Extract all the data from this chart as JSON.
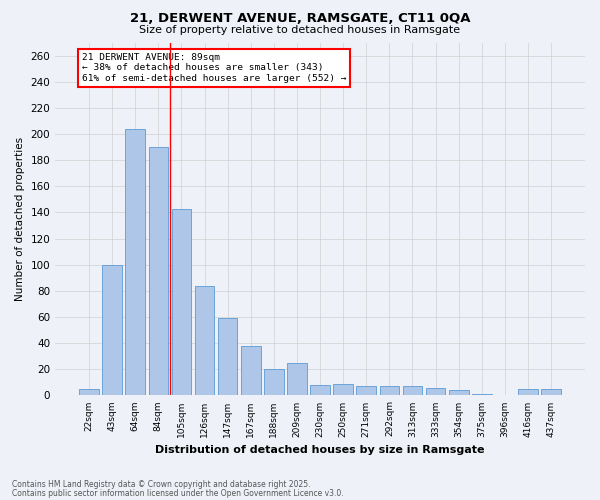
{
  "title1": "21, DERWENT AVENUE, RAMSGATE, CT11 0QA",
  "title2": "Size of property relative to detached houses in Ramsgate",
  "xlabel": "Distribution of detached houses by size in Ramsgate",
  "ylabel": "Number of detached properties",
  "categories": [
    "22sqm",
    "43sqm",
    "64sqm",
    "84sqm",
    "105sqm",
    "126sqm",
    "147sqm",
    "167sqm",
    "188sqm",
    "209sqm",
    "230sqm",
    "250sqm",
    "271sqm",
    "292sqm",
    "313sqm",
    "333sqm",
    "354sqm",
    "375sqm",
    "396sqm",
    "416sqm",
    "437sqm"
  ],
  "values": [
    5,
    100,
    204,
    190,
    143,
    84,
    59,
    38,
    20,
    25,
    8,
    9,
    7,
    7,
    7,
    6,
    4,
    1,
    0,
    5,
    5
  ],
  "bar_color": "#aec6e8",
  "bar_edge_color": "#5b9bd5",
  "grid_color": "#d0d0d0",
  "vline_x": 3.5,
  "vline_color": "red",
  "annotation_box_text": "21 DERWENT AVENUE: 89sqm\n← 38% of detached houses are smaller (343)\n61% of semi-detached houses are larger (552) →",
  "ylim": [
    0,
    270
  ],
  "yticks": [
    0,
    20,
    40,
    60,
    80,
    100,
    120,
    140,
    160,
    180,
    200,
    220,
    240,
    260
  ],
  "footer1": "Contains HM Land Registry data © Crown copyright and database right 2025.",
  "footer2": "Contains public sector information licensed under the Open Government Licence v3.0.",
  "bg_color": "#eef2f8"
}
